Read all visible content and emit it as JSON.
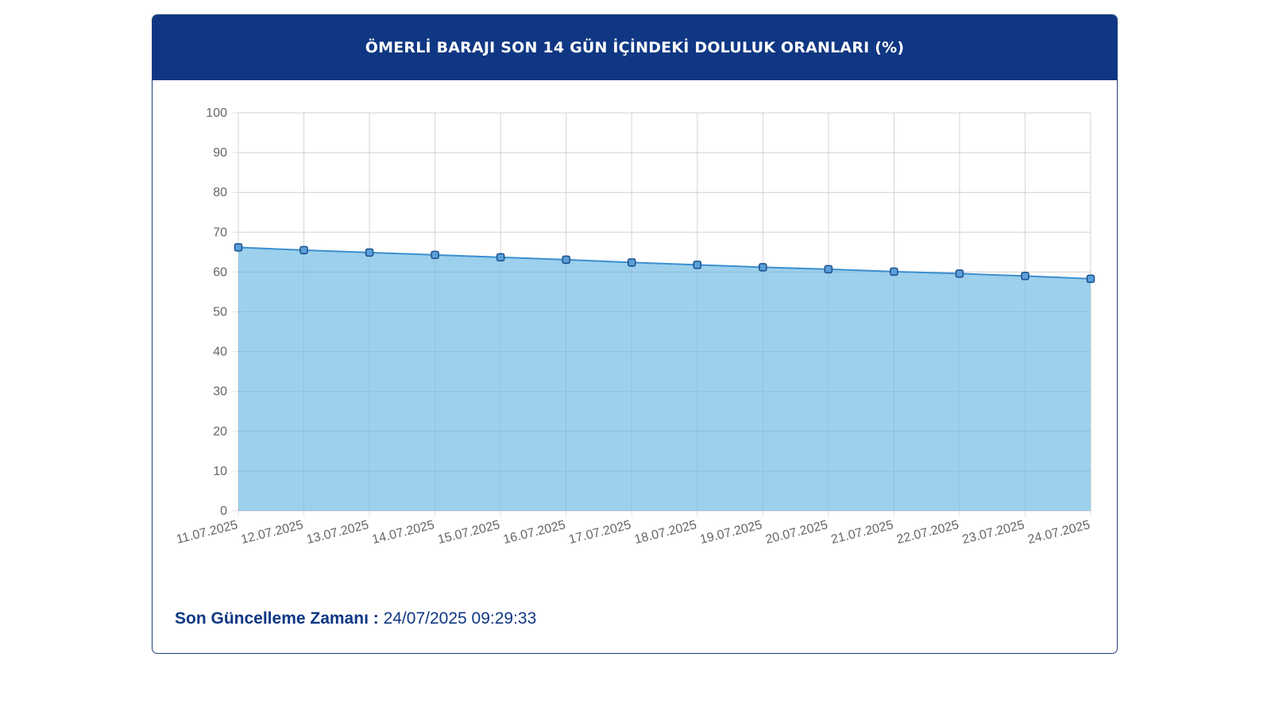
{
  "header": {
    "title": "ÖMERLİ BARAJI SON 14 GÜN İÇİNDEKİ DOLULUK ORANLARI (%)"
  },
  "footer": {
    "label": "Son Güncelleme Zamanı :",
    "value": "24/07/2025 09:29:33"
  },
  "colors": {
    "header_bg": "#0f3783",
    "area_fill": "#9dd0ec",
    "line": "#3b8fd0",
    "point_fill": "#5b9fd8",
    "point_stroke": "#1b4f8c"
  },
  "chart_data": {
    "type": "area",
    "title": "ÖMERLİ BARAJI SON 14 GÜN İÇİNDEKİ DOLULUK ORANLARI (%)",
    "xlabel": "",
    "ylabel": "",
    "ylim": [
      0,
      100
    ],
    "yticks": [
      0,
      10,
      20,
      30,
      40,
      50,
      60,
      70,
      80,
      90,
      100
    ],
    "grid": true,
    "legend": "none",
    "categories": [
      "11.07.2025",
      "12.07.2025",
      "13.07.2025",
      "14.07.2025",
      "15.07.2025",
      "16.07.2025",
      "17.07.2025",
      "18.07.2025",
      "19.07.2025",
      "20.07.2025",
      "21.07.2025",
      "22.07.2025",
      "23.07.2025",
      "24.07.2025"
    ],
    "series": [
      {
        "values": [
          66.2,
          65.5,
          64.9,
          64.3,
          63.7,
          63.1,
          62.4,
          61.8,
          61.2,
          60.7,
          60.1,
          59.6,
          59.0,
          58.3
        ]
      }
    ]
  }
}
